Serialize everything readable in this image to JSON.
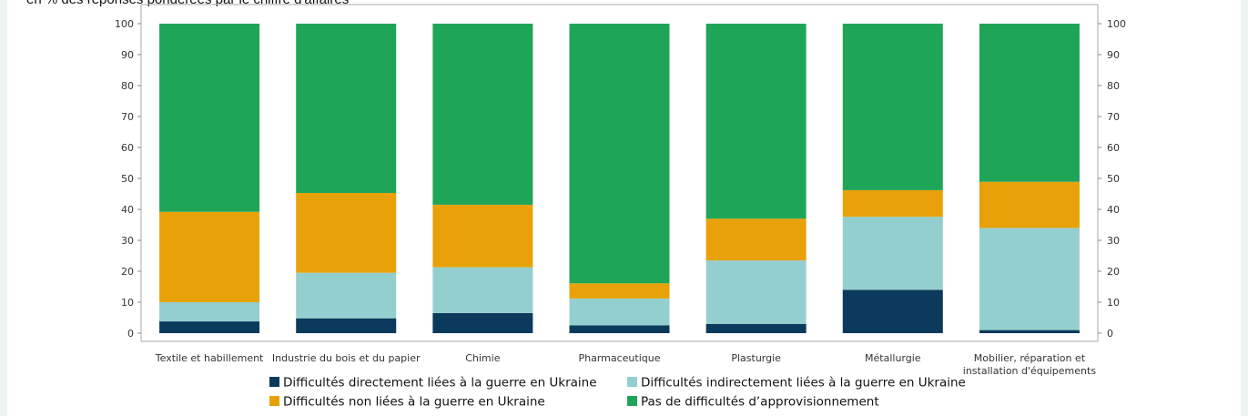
{
  "subtitle": "en % des réponses pondérées par le chiffre d'affaires",
  "chart_data": {
    "type": "bar",
    "stacked": true,
    "categories": [
      [
        "Textile et habillement"
      ],
      [
        "Industrie du bois et du papier"
      ],
      [
        "Chimie"
      ],
      [
        "Pharmaceutique"
      ],
      [
        "Plasturgie"
      ],
      [
        "Métallurgie"
      ],
      [
        "Mobilier, réparation et",
        "installation d'équipements"
      ]
    ],
    "series": [
      {
        "name": "Difficultés directement liées à la guerre en Ukraine",
        "color": "#0b3a5c",
        "values": [
          3.8,
          4.8,
          6.5,
          2.5,
          3.0,
          14.0,
          1.0
        ]
      },
      {
        "name": "Difficultés indirectement liées à la guerre en Ukraine",
        "color": "#94cfcf",
        "values": [
          6.2,
          14.7,
          14.8,
          8.7,
          20.5,
          23.6,
          33.0
        ]
      },
      {
        "name": "Difficultés non liées à la guerre en Ukraine",
        "color": "#e8a109",
        "values": [
          29.2,
          25.8,
          20.2,
          4.9,
          13.5,
          8.6,
          14.9
        ]
      },
      {
        "name": "Pas de difficultés d’approvisionnement",
        "color": "#1fa557",
        "values": [
          60.8,
          54.7,
          58.5,
          83.9,
          63.0,
          53.8,
          51.1
        ]
      }
    ],
    "yticks": [
      0,
      10,
      20,
      30,
      40,
      50,
      60,
      70,
      80,
      90,
      100
    ],
    "ylim": [
      0,
      100
    ],
    "secondary_y_axis": true,
    "legend_position": "bottom"
  }
}
